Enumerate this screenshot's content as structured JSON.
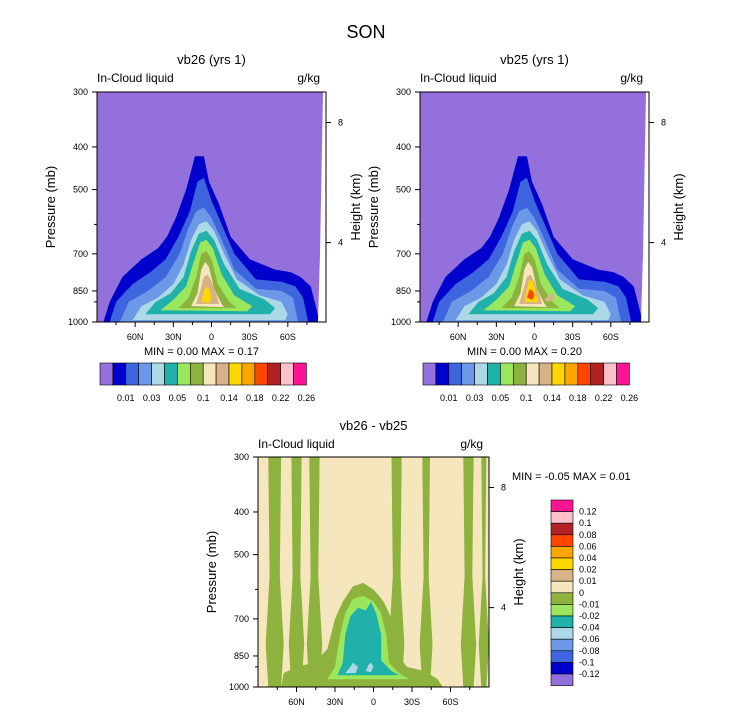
{
  "figure": {
    "title": "SON",
    "colors": {
      "background_fill": "#9370DB",
      "axis": "#000000"
    }
  },
  "chart_data": [
    {
      "type": "contour",
      "title": "vb26 (yrs 1)",
      "left_label": "In-Cloud liquid",
      "right_label": "g/kg",
      "ylabel": "Pressure (mb)",
      "y2label": "Height (km)",
      "pressure_ticks": [
        "300",
        "400",
        "500",
        "700",
        "850",
        "1000"
      ],
      "height_ticks": [
        "8",
        "4"
      ],
      "lat_ticks": [
        "60N",
        "30N",
        "0",
        "30S",
        "60S"
      ],
      "lat_range": [
        90,
        -90
      ],
      "pressure_range": [
        300,
        1000
      ],
      "stats_min_label": "MIN =",
      "stats_min": "0.00",
      "stats_max_label": "MAX =",
      "stats_max": "0.17",
      "stats": "MIN =  0.00  MAX =  0.17",
      "colorbar": {
        "colors": [
          "#9370DB",
          "#0000CD",
          "#3D65DD",
          "#6C98E8",
          "#ADD8E6",
          "#20B2AA",
          "#9AE65C",
          "#8DB33E",
          "#F5E6BE",
          "#D8B287",
          "#FFD700",
          "#FFA500",
          "#FF4500",
          "#B22222",
          "#FFC0CB",
          "#FF1493"
        ],
        "tick_labels": [
          "0.01",
          "0.03",
          "0.05",
          "0.1",
          "0.14",
          "0.18",
          "0.22",
          "0.26"
        ]
      },
      "max_value": 0.17
    },
    {
      "type": "contour",
      "title": "vb25 (yrs 1)",
      "left_label": "In-Cloud liquid",
      "right_label": "g/kg",
      "ylabel": "Pressure (mb)",
      "y2label": "Height (km)",
      "pressure_ticks": [
        "300",
        "400",
        "500",
        "700",
        "850",
        "1000"
      ],
      "height_ticks": [
        "8",
        "4"
      ],
      "lat_ticks": [
        "60N",
        "30N",
        "0",
        "30S",
        "60S"
      ],
      "lat_range": [
        90,
        -90
      ],
      "pressure_range": [
        300,
        1000
      ],
      "stats_min_label": "MIN =",
      "stats_min": "0.00",
      "stats_max_label": "MAX =",
      "stats_max": "0.20",
      "stats": "MIN =  0.00  MAX =  0.20",
      "colorbar": {
        "colors": [
          "#9370DB",
          "#0000CD",
          "#3D65DD",
          "#6C98E8",
          "#ADD8E6",
          "#20B2AA",
          "#9AE65C",
          "#8DB33E",
          "#F5E6BE",
          "#D8B287",
          "#FFD700",
          "#FFA500",
          "#FF4500",
          "#B22222",
          "#FFC0CB",
          "#FF1493"
        ],
        "tick_labels": [
          "0.01",
          "0.03",
          "0.05",
          "0.1",
          "0.14",
          "0.18",
          "0.22",
          "0.26"
        ]
      },
      "max_value": 0.2
    },
    {
      "type": "contour",
      "title": "vb26 - vb25",
      "left_label": "In-Cloud liquid",
      "right_label": "g/kg",
      "ylabel": "Pressure (mb)",
      "y2label": "Height (km)",
      "pressure_ticks": [
        "300",
        "400",
        "500",
        "700",
        "850",
        "1000"
      ],
      "height_ticks": [
        "8",
        "4"
      ],
      "lat_ticks": [
        "60N",
        "30N",
        "0",
        "30S",
        "60S"
      ],
      "lat_range": [
        90,
        -90
      ],
      "pressure_range": [
        300,
        1000
      ],
      "stats_min_label": "MIN =",
      "stats_min": "-0.05",
      "stats_max_label": "MAX =",
      "stats_max": "0.01",
      "stats": "MIN =  -0.05  MAX =  0.01",
      "colorbar": {
        "colors": [
          "#9370DB",
          "#0000CD",
          "#3D65DD",
          "#6C98E8",
          "#ADD8E6",
          "#20B2AA",
          "#9AE65C",
          "#8DB33E",
          "#F5E6BE",
          "#D8B287",
          "#FFD700",
          "#FFA500",
          "#FF4500",
          "#B22222",
          "#FFC0CB",
          "#FF1493"
        ],
        "tick_labels": [
          "0.12",
          "0.1",
          "0.08",
          "0.06",
          "0.04",
          "0.02",
          "0.01",
          "0",
          "-0.01",
          "-0.02",
          "-0.04",
          "-0.06",
          "-0.08",
          "-0.1",
          "-0.12"
        ]
      },
      "min_value": -0.05,
      "max_value": 0.01
    }
  ]
}
